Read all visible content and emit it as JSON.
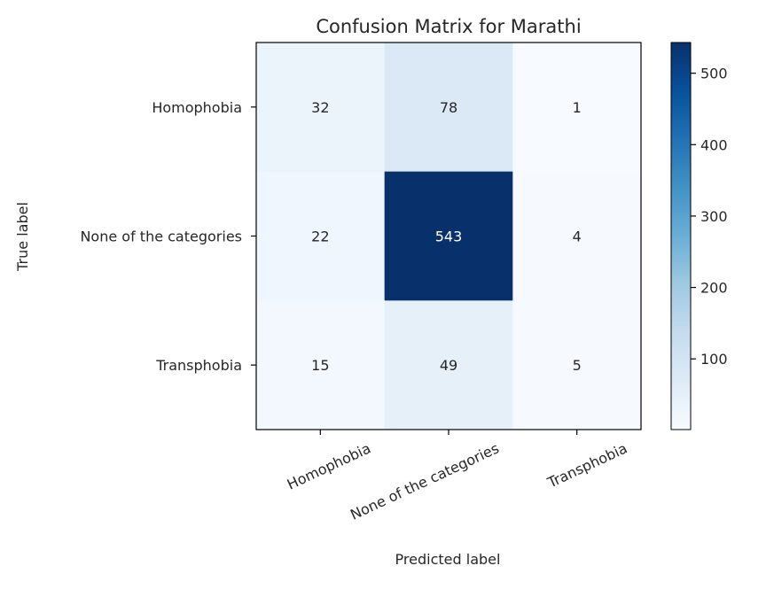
{
  "chart_data": {
    "type": "heatmap",
    "title": "Confusion Matrix for Marathi",
    "xlabel": "Predicted label",
    "ylabel": "True label",
    "x_categories": [
      "Homophobia",
      "None of the categories",
      "Transphobia"
    ],
    "y_categories": [
      "Homophobia",
      "None of the categories",
      "Transphobia"
    ],
    "values": [
      [
        32,
        78,
        1
      ],
      [
        22,
        543,
        4
      ],
      [
        15,
        49,
        5
      ]
    ],
    "colormap": "Blues",
    "colorbar": {
      "min": 1,
      "max": 543,
      "ticks": [
        100,
        200,
        300,
        400,
        500
      ]
    },
    "text_color_light": "#ffffff",
    "text_color_dark": "#262626"
  }
}
